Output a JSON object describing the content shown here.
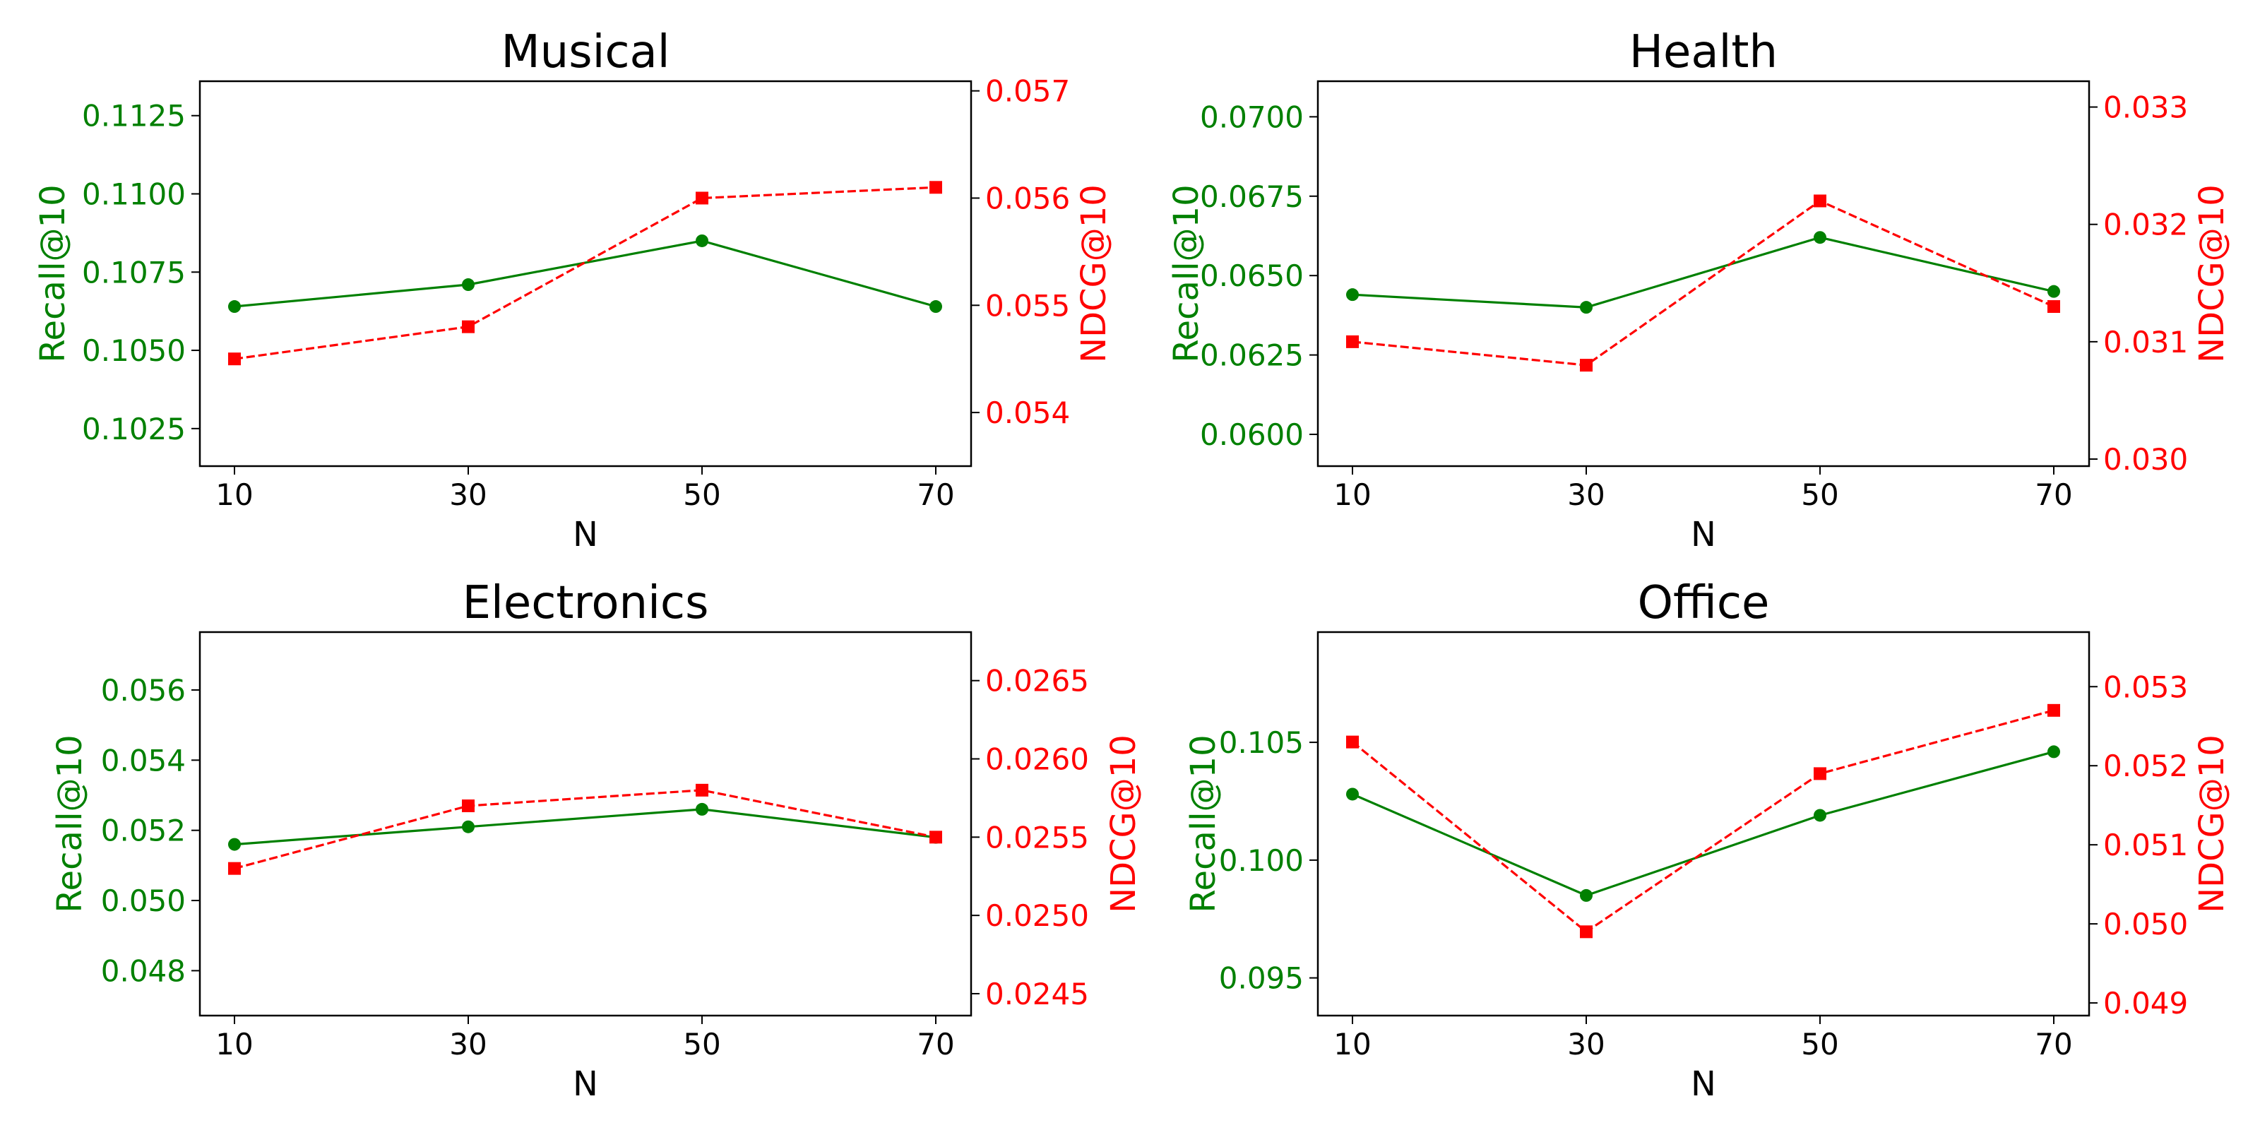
{
  "figure": {
    "left_color": "#008000",
    "right_color": "#ff0000"
  },
  "chart_data": [
    {
      "type": "line",
      "title": "Musical",
      "xlabel": "N",
      "ylabel_left": "Recall@10",
      "ylabel_right": "NDCG@10",
      "x": [
        10,
        30,
        50,
        70
      ],
      "xticks": [
        "10",
        "30",
        "50",
        "70"
      ],
      "grid": false,
      "left": {
        "ylim": [
          0.1013,
          0.1136
        ],
        "ticks": [
          0.1025,
          0.105,
          0.1075,
          0.11,
          0.1125
        ],
        "tick_labels": [
          "0.1025",
          "0.1050",
          "0.1075",
          "0.1100",
          "0.1125"
        ]
      },
      "right": {
        "ylim": [
          0.0535,
          0.05709
        ],
        "ticks": [
          0.054,
          0.055,
          0.056,
          0.057
        ],
        "tick_labels": [
          "0.054",
          "0.055",
          "0.056",
          "0.057"
        ]
      },
      "series": [
        {
          "name": "Recall@10",
          "axis": "left",
          "color": "#008000",
          "style": "solid",
          "marker": "circle",
          "values": [
            0.1064,
            0.1071,
            0.1085,
            0.1064
          ]
        },
        {
          "name": "NDCG@10",
          "axis": "right",
          "color": "#ff0000",
          "style": "dashed",
          "marker": "square",
          "values": [
            0.0545,
            0.0548,
            0.056,
            0.0561
          ]
        }
      ]
    },
    {
      "type": "line",
      "title": "Health",
      "xlabel": "N",
      "ylabel_left": "Recall@10",
      "ylabel_right": "NDCG@10",
      "x": [
        10,
        30,
        50,
        70
      ],
      "xticks": [
        "10",
        "30",
        "50",
        "70"
      ],
      "grid": false,
      "left": {
        "ylim": [
          0.059,
          0.07112
        ],
        "ticks": [
          0.06,
          0.0625,
          0.065,
          0.0675,
          0.07
        ],
        "tick_labels": [
          "0.0600",
          "0.0625",
          "0.0650",
          "0.0675",
          "0.0700"
        ]
      },
      "right": {
        "ylim": [
          0.02994,
          0.03322
        ],
        "ticks": [
          0.03,
          0.031,
          0.032,
          0.033
        ],
        "tick_labels": [
          "0.030",
          "0.031",
          "0.032",
          "0.033"
        ]
      },
      "series": [
        {
          "name": "Recall@10",
          "axis": "left",
          "color": "#008000",
          "style": "solid",
          "marker": "circle",
          "values": [
            0.0644,
            0.064,
            0.0662,
            0.0645
          ]
        },
        {
          "name": "NDCG@10",
          "axis": "right",
          "color": "#ff0000",
          "style": "dashed",
          "marker": "square",
          "values": [
            0.031,
            0.0308,
            0.0322,
            0.0313
          ]
        }
      ]
    },
    {
      "type": "line",
      "title": "Electronics",
      "xlabel": "N",
      "ylabel_left": "Recall@10",
      "ylabel_right": "NDCG@10",
      "x": [
        10,
        30,
        50,
        70
      ],
      "xticks": [
        "10",
        "30",
        "50",
        "70"
      ],
      "grid": false,
      "left": {
        "ylim": [
          0.04672,
          0.05765
        ],
        "ticks": [
          0.048,
          0.05,
          0.052,
          0.054,
          0.056
        ],
        "tick_labels": [
          "0.048",
          "0.050",
          "0.052",
          "0.054",
          "0.056"
        ]
      },
      "right": {
        "ylim": [
          0.02436,
          0.02681
        ],
        "ticks": [
          0.0245,
          0.025,
          0.0255,
          0.026,
          0.0265
        ],
        "tick_labels": [
          "0.0245",
          "0.0250",
          "0.0255",
          "0.0260",
          "0.0265"
        ]
      },
      "series": [
        {
          "name": "Recall@10",
          "axis": "left",
          "color": "#008000",
          "style": "solid",
          "marker": "circle",
          "values": [
            0.0516,
            0.0521,
            0.0526,
            0.0518
          ]
        },
        {
          "name": "NDCG@10",
          "axis": "right",
          "color": "#ff0000",
          "style": "dashed",
          "marker": "square",
          "values": [
            0.0253,
            0.0257,
            0.0258,
            0.0255
          ]
        }
      ]
    },
    {
      "type": "line",
      "title": "Office",
      "xlabel": "N",
      "ylabel_left": "Recall@10",
      "ylabel_right": "NDCG@10",
      "x": [
        10,
        30,
        50,
        70
      ],
      "xticks": [
        "10",
        "30",
        "50",
        "70"
      ],
      "grid": false,
      "left": {
        "ylim": [
          0.0934,
          0.10968
        ],
        "ticks": [
          0.095,
          0.1,
          0.105
        ],
        "tick_labels": [
          "0.095",
          "0.100",
          "0.105"
        ]
      },
      "right": {
        "ylim": [
          0.04884,
          0.05369
        ],
        "ticks": [
          0.049,
          0.05,
          0.051,
          0.052,
          0.053
        ],
        "tick_labels": [
          "0.049",
          "0.050",
          "0.051",
          "0.052",
          "0.053"
        ]
      },
      "series": [
        {
          "name": "Recall@10",
          "axis": "left",
          "color": "#008000",
          "style": "solid",
          "marker": "circle",
          "values": [
            0.1028,
            0.0985,
            0.1019,
            0.1046
          ]
        },
        {
          "name": "NDCG@10",
          "axis": "right",
          "color": "#ff0000",
          "style": "dashed",
          "marker": "square",
          "values": [
            0.0523,
            0.0499,
            0.0519,
            0.0527
          ]
        }
      ]
    }
  ]
}
